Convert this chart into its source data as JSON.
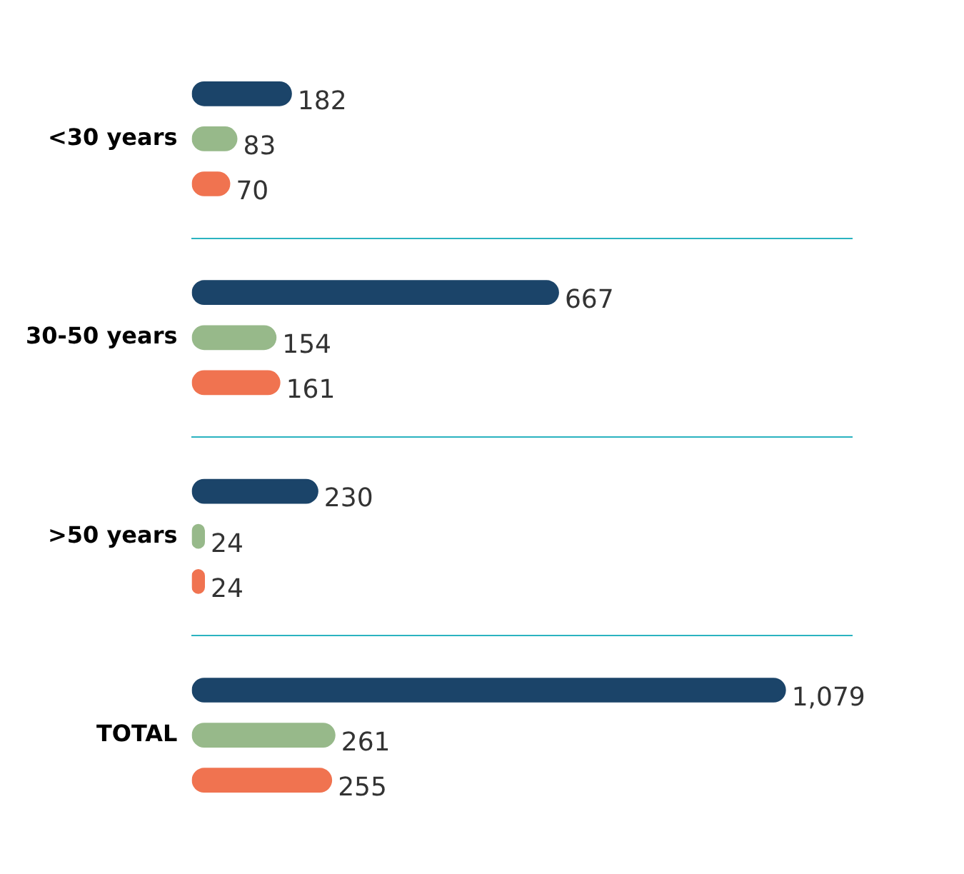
{
  "chart_data": {
    "type": "bar",
    "orientation": "horizontal",
    "categories": [
      "<30 years",
      "30-50 years",
      ">50 years",
      "TOTAL"
    ],
    "series": [
      {
        "color": "#1b4469",
        "values": [
          182,
          667,
          230,
          1079
        ],
        "value_labels": [
          "182",
          "667",
          "230",
          "1,079"
        ]
      },
      {
        "color": "#97b98a",
        "values": [
          83,
          154,
          24,
          261
        ],
        "value_labels": [
          "83",
          "154",
          "24",
          "261"
        ]
      },
      {
        "color": "#f07350",
        "values": [
          70,
          161,
          24,
          255
        ],
        "value_labels": [
          "70",
          "161",
          "24",
          "255"
        ]
      }
    ],
    "grid": "y",
    "legend": false,
    "tick_labels": "y"
  }
}
